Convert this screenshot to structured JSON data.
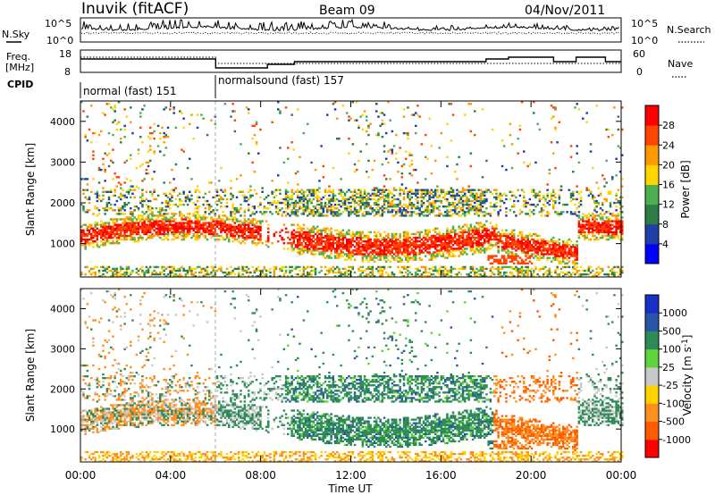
{
  "header": {
    "site": "Inuvik (fitACF)",
    "beam": "Beam 09",
    "date": "04/Nov/2011"
  },
  "left_labels": {
    "nsky": "N.Sky",
    "freq": "Freq.",
    "mhz": "[MHz]",
    "cpid": "CPID"
  },
  "right_labels": {
    "nsearch": "N.Search",
    "nave": "Nave"
  },
  "noise_panel": {
    "left_ticks": [
      "10^5",
      "10^0"
    ],
    "right_ticks": [
      "10^5",
      "10^0"
    ]
  },
  "freq_panel": {
    "left_ticks": [
      "18",
      "8"
    ],
    "right_ticks": [
      "60",
      "0"
    ]
  },
  "cpid_panel": {
    "label_1": "normal (fast) 151",
    "label_2": "normalsound (fast) 157"
  },
  "colors": {
    "power": [
      "#0000ff",
      "#1f3fa8",
      "#2e7d45",
      "#4caf50",
      "#ffd400",
      "#ff9900",
      "#ff4500",
      "#ff0000"
    ],
    "velocity": [
      "#1a2fc7",
      "#2855a8",
      "#2e8b57",
      "#5fd43a",
      "#c8c8c8",
      "#ffd200",
      "#ff9020",
      "#ff5a00",
      "#ff0000"
    ]
  },
  "chart_data": [
    {
      "type": "heatmap",
      "title": "",
      "xlabel": "Time UT",
      "ylabel": "Slant Range [km]",
      "x_ticks": [
        "00:00",
        "04:00",
        "08:00",
        "12:00",
        "16:00",
        "20:00",
        "00:00"
      ],
      "y_ticks": [
        "1000",
        "2000",
        "3000",
        "4000"
      ],
      "xlim": [
        "00:00",
        "24:00"
      ],
      "ylim": [
        180,
        4500
      ],
      "colorbar": {
        "label": "Power [dB]",
        "ticks": [
          "4",
          "8",
          "12",
          "16",
          "20",
          "24",
          "28"
        ],
        "range": [
          0,
          30
        ]
      }
    },
    {
      "type": "heatmap",
      "title": "",
      "xlabel": "Time UT",
      "ylabel": "Slant Range [km]",
      "x_ticks": [
        "00:00",
        "04:00",
        "08:00",
        "12:00",
        "16:00",
        "20:00",
        "00:00"
      ],
      "y_ticks": [
        "1000",
        "2000",
        "3000",
        "4000"
      ],
      "xlim": [
        "00:00",
        "24:00"
      ],
      "ylim": [
        180,
        4500
      ],
      "colorbar": {
        "label": "Velocity [m s",
        "label_sup": "-1",
        "label_end": "]",
        "ticks": [
          "1000",
          "500",
          "100",
          "25",
          "-25",
          "-100",
          "-500",
          "-1000"
        ]
      }
    }
  ]
}
